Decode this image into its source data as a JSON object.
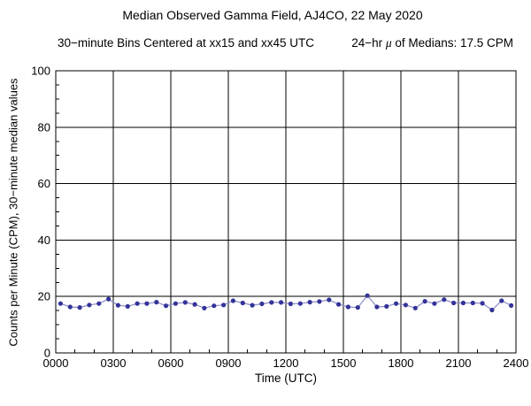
{
  "header": {
    "title": "Median Observed Gamma Field, AJ4CO, 22 May 2020",
    "subtitle_left": "30−minute Bins Centered at xx15 and xx45 UTC",
    "mean_prefix": "24−hr ",
    "mean_mu": "μ",
    "mean_suffix": " of Medians: 17.5 CPM"
  },
  "chart_data": {
    "type": "line",
    "title": "Median Observed Gamma Field, AJ4CO, 22 May 2020",
    "subtitle": "30−minute Bins Centered at xx15 and xx45 UTC    24−hr μ of Medians: 17.5 CPM",
    "xlabel": "Time (UTC)",
    "ylabel": "Counts per Minute (CPM), 30−minute median values",
    "xlim_hours": [
      0,
      24
    ],
    "ylim": [
      0,
      100
    ],
    "grid": true,
    "legend": "none",
    "x_tick_labels": [
      "0000",
      "0300",
      "0600",
      "0900",
      "1200",
      "1500",
      "1800",
      "2100",
      "2400"
    ],
    "x_major_step_hours": 3,
    "x_minor_step_hours": 1,
    "y_tick_labels": [
      "0",
      "20",
      "40",
      "60",
      "80",
      "100"
    ],
    "y_major_step": 20,
    "y_minor_step": 5,
    "mean_of_medians_cpm": 17.5,
    "line_color": "#8c8cc8",
    "marker_color": "#333399",
    "grid_color": "#000000",
    "bin_times_utc": [
      "0015",
      "0045",
      "0115",
      "0145",
      "0215",
      "0245",
      "0315",
      "0345",
      "0415",
      "0445",
      "0515",
      "0545",
      "0615",
      "0645",
      "0715",
      "0745",
      "0815",
      "0845",
      "0915",
      "0945",
      "1015",
      "1045",
      "1115",
      "1145",
      "1215",
      "1245",
      "1315",
      "1345",
      "1415",
      "1445",
      "1515",
      "1545",
      "1615",
      "1645",
      "1715",
      "1745",
      "1815",
      "1845",
      "1915",
      "1945",
      "2015",
      "2045",
      "2115",
      "2145",
      "2215",
      "2245",
      "2315",
      "2345"
    ],
    "values_cpm": [
      17.5,
      16.3,
      16.1,
      17.0,
      17.5,
      19.1,
      16.9,
      16.5,
      17.5,
      17.5,
      18.0,
      16.7,
      17.5,
      17.9,
      17.2,
      15.9,
      16.7,
      17.0,
      18.5,
      17.7,
      16.9,
      17.4,
      17.9,
      17.9,
      17.4,
      17.5,
      18.0,
      18.2,
      18.8,
      17.2,
      16.3,
      16.1,
      20.3,
      16.3,
      16.5,
      17.5,
      17.0,
      15.9,
      18.3,
      17.5,
      18.9,
      17.7,
      17.7,
      17.7,
      17.6,
      15.2,
      18.5,
      16.8
    ]
  }
}
